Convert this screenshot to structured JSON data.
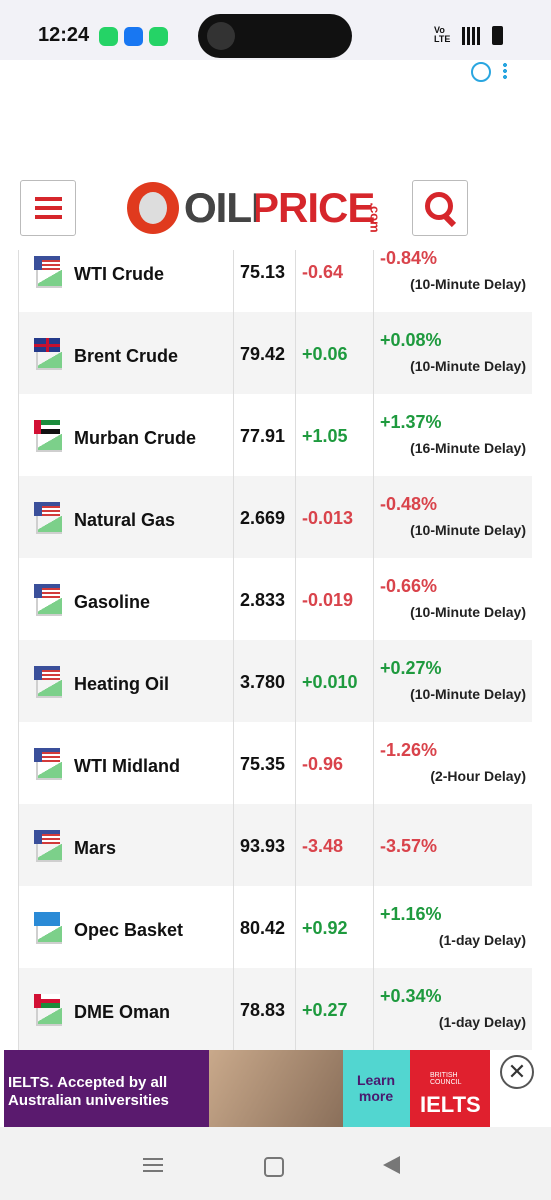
{
  "status_bar": {
    "time": "12:24",
    "network": "Vo\nLTE"
  },
  "header": {
    "logo": "OILPRICE",
    "logo_suffix": ".com"
  },
  "table": {
    "rows": [
      [
        "WTI Crude",
        "75.13",
        "-0.64",
        "-0.84%",
        "(10-Minute Delay)"
      ],
      [
        "Brent Crude",
        "79.42",
        "+0.06",
        "+0.08%",
        "(10-Minute Delay)"
      ],
      [
        "Murban Crude",
        "77.91",
        "+1.05",
        "+1.37%",
        "(16-Minute Delay)"
      ],
      [
        "Natural Gas",
        "2.669",
        "-0.013",
        "-0.48%",
        "(10-Minute Delay)"
      ],
      [
        "Gasoline",
        "2.833",
        "-0.019",
        "-0.66%",
        "(10-Minute Delay)"
      ],
      [
        "Heating Oil",
        "3.780",
        "+0.010",
        "+0.27%",
        "(10-Minute Delay)"
      ],
      [
        "WTI Midland",
        "75.35",
        "-0.96",
        "-1.26%",
        "(2-Hour Delay)"
      ],
      [
        "Mars",
        "93.93",
        "-3.48",
        "-3.57%"
      ],
      [
        "Opec Basket",
        "80.42",
        "+0.92",
        "+1.16%",
        "(1-day Delay)"
      ],
      [
        "DME Oman",
        "78.83",
        "+0.27",
        "+0.34%",
        "(1-day Delay)"
      ]
    ]
  },
  "ad": {
    "headline": "IELTS. Accepted by all Australian universities",
    "cta": "Learn more",
    "brand_top": "BRITISH COUNCIL",
    "brand": "IELTS"
  }
}
